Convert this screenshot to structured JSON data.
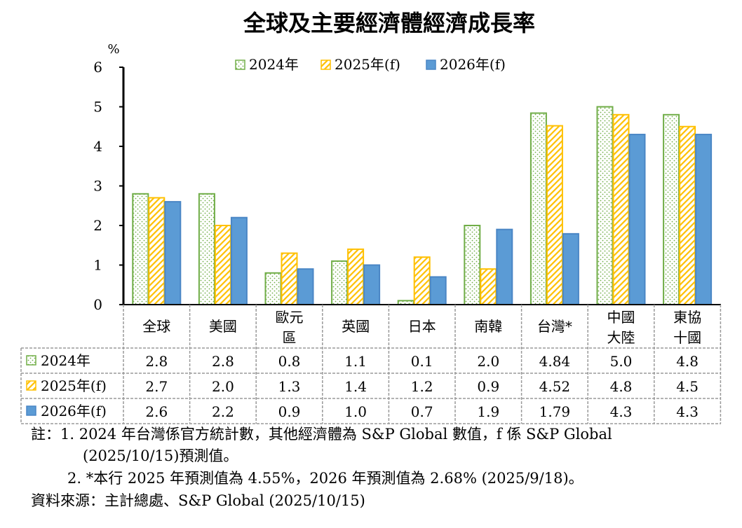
{
  "chart_data": {
    "type": "bar",
    "title": "全球及主要經濟體經濟成長率",
    "ylabel": "%",
    "ylim": [
      0,
      6
    ],
    "yticks": [
      "0",
      "1",
      "2",
      "3",
      "4",
      "5",
      "6"
    ],
    "grid": false,
    "legend_position": "top",
    "categories": [
      [
        "全球"
      ],
      [
        "美國"
      ],
      [
        "歐元",
        "區"
      ],
      [
        "英國"
      ],
      [
        "日本"
      ],
      [
        "南韓"
      ],
      [
        "台灣*"
      ],
      [
        "中國",
        "大陸"
      ],
      [
        "東協",
        "十國"
      ]
    ],
    "series": [
      {
        "name": "2024年",
        "color": "#70ad47",
        "pattern": "dots",
        "values": [
          2.8,
          2.8,
          0.8,
          1.1,
          0.1,
          2.0,
          4.84,
          5.0,
          4.8
        ],
        "labels": [
          "2.8",
          "2.8",
          "0.8",
          "1.1",
          "0.1",
          "2.0",
          "4.84",
          "5.0",
          "4.8"
        ]
      },
      {
        "name": "2025年(f)",
        "color": "#ffc000",
        "pattern": "diagonal",
        "values": [
          2.7,
          2.0,
          1.3,
          1.4,
          1.2,
          0.9,
          4.52,
          4.8,
          4.5
        ],
        "labels": [
          "2.7",
          "2.0",
          "1.3",
          "1.4",
          "1.2",
          "0.9",
          "4.52",
          "4.8",
          "4.5"
        ]
      },
      {
        "name": "2026年(f)",
        "color": "#5b9bd5",
        "pattern": "solid",
        "values": [
          2.6,
          2.2,
          0.9,
          1.0,
          0.7,
          1.9,
          1.79,
          4.3,
          4.3
        ],
        "labels": [
          "2.6",
          "2.2",
          "0.9",
          "1.0",
          "0.7",
          "1.9",
          "1.79",
          "4.3",
          "4.3"
        ]
      }
    ]
  },
  "notes": {
    "line1": "註：1. 2024 年台灣係官方統計數，其他經濟體為 S&P Global 數值，f 係 S&P Global",
    "line2": "(2025/10/15)預測值。",
    "line3": "2. *本行 2025 年預測值為 4.55%，2026 年預測值為 2.68% (2025/9/18)。",
    "source": "資料來源：主計總處、S&P Global (2025/10/15)"
  }
}
